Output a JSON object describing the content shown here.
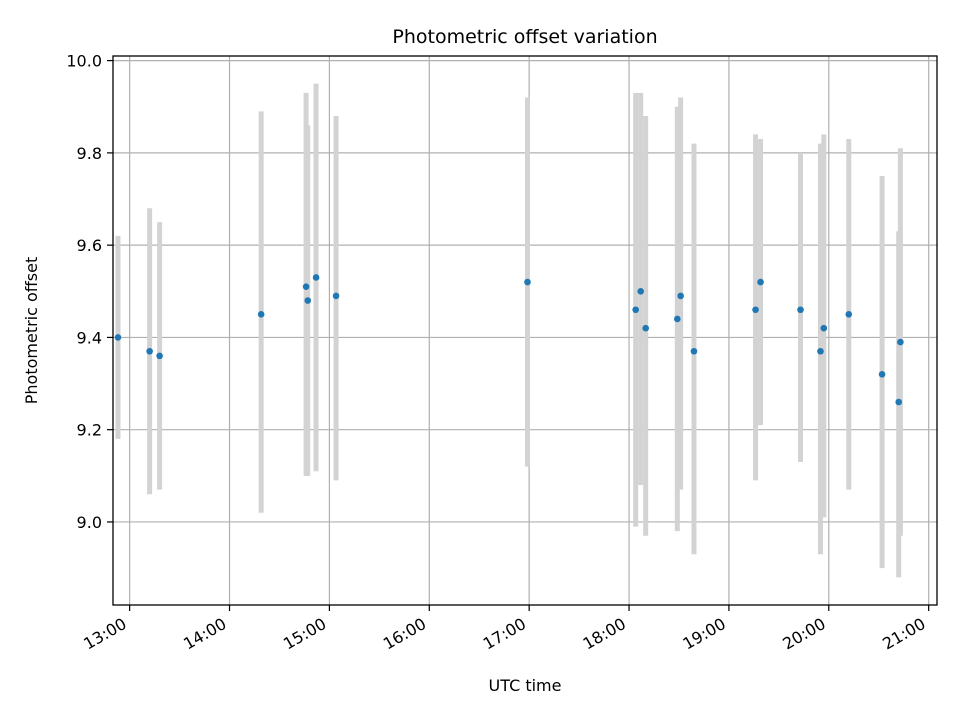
{
  "chart_data": {
    "type": "scatter",
    "title": "Photometric offset variation",
    "xlabel": "UTC time",
    "ylabel": "Photometric offset",
    "x_tick_labels": [
      "13:00",
      "14:00",
      "15:00",
      "16:00",
      "17:00",
      "18:00",
      "19:00",
      "20:00",
      "21:00"
    ],
    "y_tick_labels": [
      "9.0",
      "9.2",
      "9.4",
      "9.6",
      "9.8",
      "10.0"
    ],
    "xlim": [
      "12:50",
      "21:05"
    ],
    "ylim": [
      8.82,
      10.01
    ],
    "grid": true,
    "legend": "none",
    "colors": {
      "point": "#1f77b4",
      "errorbar": "#d3d3d3",
      "grid": "#b0b0b0"
    },
    "points": [
      {
        "x": "12:53",
        "y": 9.4,
        "yerr": [
          9.18,
          9.62
        ]
      },
      {
        "x": "13:12",
        "y": 9.37,
        "yerr": [
          9.06,
          9.68
        ]
      },
      {
        "x": "13:18",
        "y": 9.36,
        "yerr": [
          9.07,
          9.65
        ]
      },
      {
        "x": "14:19",
        "y": 9.45,
        "yerr": [
          9.02,
          9.89
        ]
      },
      {
        "x": "14:46",
        "y": 9.51,
        "yerr": [
          9.1,
          9.93
        ]
      },
      {
        "x": "14:47",
        "y": 9.48,
        "yerr": [
          9.1,
          9.86
        ]
      },
      {
        "x": "14:52",
        "y": 9.53,
        "yerr": [
          9.11,
          9.95
        ]
      },
      {
        "x": "15:04",
        "y": 9.49,
        "yerr": [
          9.09,
          9.88
        ]
      },
      {
        "x": "16:59",
        "y": 9.52,
        "yerr": [
          9.12,
          9.92
        ]
      },
      {
        "x": "18:04",
        "y": 9.46,
        "yerr": [
          8.99,
          9.93
        ]
      },
      {
        "x": "18:07",
        "y": 9.5,
        "yerr": [
          9.08,
          9.93
        ]
      },
      {
        "x": "18:10",
        "y": 9.42,
        "yerr": [
          8.97,
          9.88
        ]
      },
      {
        "x": "18:29",
        "y": 9.44,
        "yerr": [
          8.98,
          9.9
        ]
      },
      {
        "x": "18:31",
        "y": 9.49,
        "yerr": [
          9.07,
          9.92
        ]
      },
      {
        "x": "18:39",
        "y": 9.37,
        "yerr": [
          8.93,
          9.82
        ]
      },
      {
        "x": "19:16",
        "y": 9.46,
        "yerr": [
          9.09,
          9.84
        ]
      },
      {
        "x": "19:19",
        "y": 9.52,
        "yerr": [
          9.21,
          9.83
        ]
      },
      {
        "x": "19:43",
        "y": 9.46,
        "yerr": [
          9.13,
          9.8
        ]
      },
      {
        "x": "19:55",
        "y": 9.37,
        "yerr": [
          8.93,
          9.82
        ]
      },
      {
        "x": "19:57",
        "y": 9.42,
        "yerr": [
          9.01,
          9.84
        ]
      },
      {
        "x": "20:12",
        "y": 9.45,
        "yerr": [
          9.07,
          9.83
        ]
      },
      {
        "x": "20:32",
        "y": 9.32,
        "yerr": [
          8.9,
          9.75
        ]
      },
      {
        "x": "20:42",
        "y": 9.26,
        "yerr": [
          8.88,
          9.63
        ]
      },
      {
        "x": "20:43",
        "y": 9.39,
        "yerr": [
          8.97,
          9.81
        ]
      }
    ]
  }
}
